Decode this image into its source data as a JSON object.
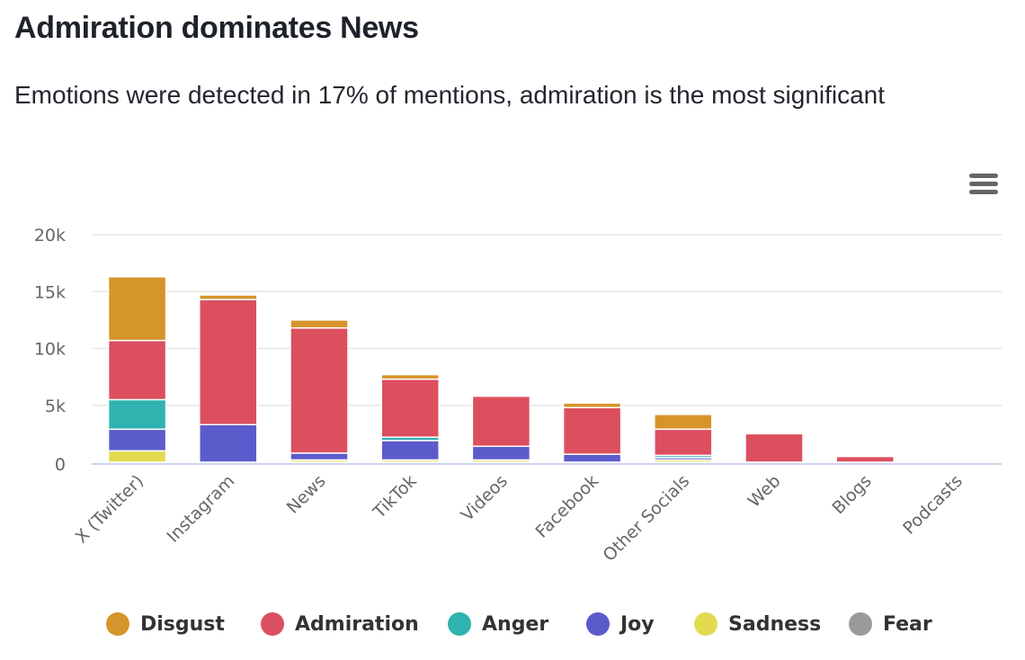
{
  "header": {
    "title": "Admiration dominates News",
    "subtitle": "Emotions were detected in 17% of mentions, admiration is the most significant"
  },
  "menu": {
    "icon": "hamburger-menu-icon"
  },
  "chart_data": {
    "type": "bar",
    "stacked": true,
    "title": "Admiration dominates News",
    "subtitle": "Emotions were detected in 17% of mentions, admiration is the most significant",
    "xlabel": "",
    "ylabel": "",
    "ylim": [
      0,
      20000
    ],
    "yticks": [
      0,
      5000,
      10000,
      15000,
      20000
    ],
    "ytick_labels": [
      "0",
      "5k",
      "10k",
      "15k",
      "20k"
    ],
    "grid": true,
    "legend_position": "bottom",
    "categories": [
      "X (Twitter)",
      "Instagram",
      "News",
      "TikTok",
      "Videos",
      "Facebook",
      "Other Socials",
      "Web",
      "Blogs",
      "Podcasts"
    ],
    "series": [
      {
        "name": "Disgust",
        "color": "#d6952a",
        "values": [
          5600,
          400,
          700,
          400,
          0,
          400,
          1300,
          0,
          0,
          0
        ]
      },
      {
        "name": "Admiration",
        "color": "#dc4f5f",
        "values": [
          5200,
          11000,
          11000,
          5100,
          4400,
          4100,
          2300,
          2500,
          500,
          0
        ]
      },
      {
        "name": "Anger",
        "color": "#2fb2b0",
        "values": [
          2600,
          0,
          0,
          300,
          0,
          0,
          200,
          0,
          0,
          0
        ]
      },
      {
        "name": "Joy",
        "color": "#5b5bcb",
        "values": [
          1900,
          3300,
          600,
          1700,
          1200,
          700,
          200,
          0,
          0,
          0
        ]
      },
      {
        "name": "Sadness",
        "color": "#e2db4f",
        "values": [
          1000,
          0,
          200,
          200,
          200,
          0,
          200,
          0,
          0,
          0
        ]
      },
      {
        "name": "Fear",
        "color": "#9a9a9a",
        "values": [
          0,
          0,
          0,
          0,
          0,
          0,
          0,
          0,
          0,
          0
        ]
      }
    ]
  }
}
